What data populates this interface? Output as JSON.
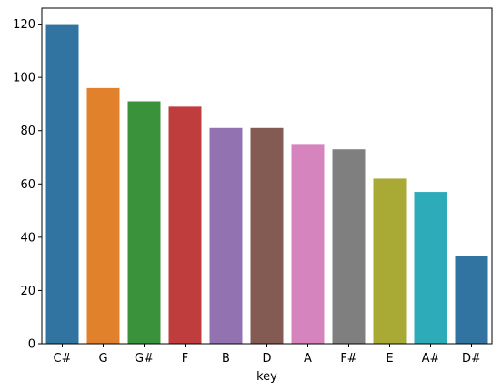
{
  "chart_data": {
    "type": "bar",
    "categories": [
      "C#",
      "G",
      "G#",
      "F",
      "B",
      "D",
      "A",
      "F#",
      "E",
      "A#",
      "D#"
    ],
    "values": [
      120,
      96,
      91,
      89,
      81,
      81,
      75,
      73,
      62,
      57,
      33
    ],
    "colors": [
      "#3274a1",
      "#e1812c",
      "#3a923a",
      "#c03d3e",
      "#9372b2",
      "#845b53",
      "#d684bd",
      "#7f7f7f",
      "#a9aa35",
      "#2eabb8",
      "#3274a1"
    ],
    "title": "",
    "xlabel": "key",
    "ylabel": "",
    "ylim": [
      0,
      126
    ],
    "yticks": [
      0,
      20,
      40,
      60,
      80,
      100,
      120
    ],
    "grid": false,
    "legend": "none"
  }
}
